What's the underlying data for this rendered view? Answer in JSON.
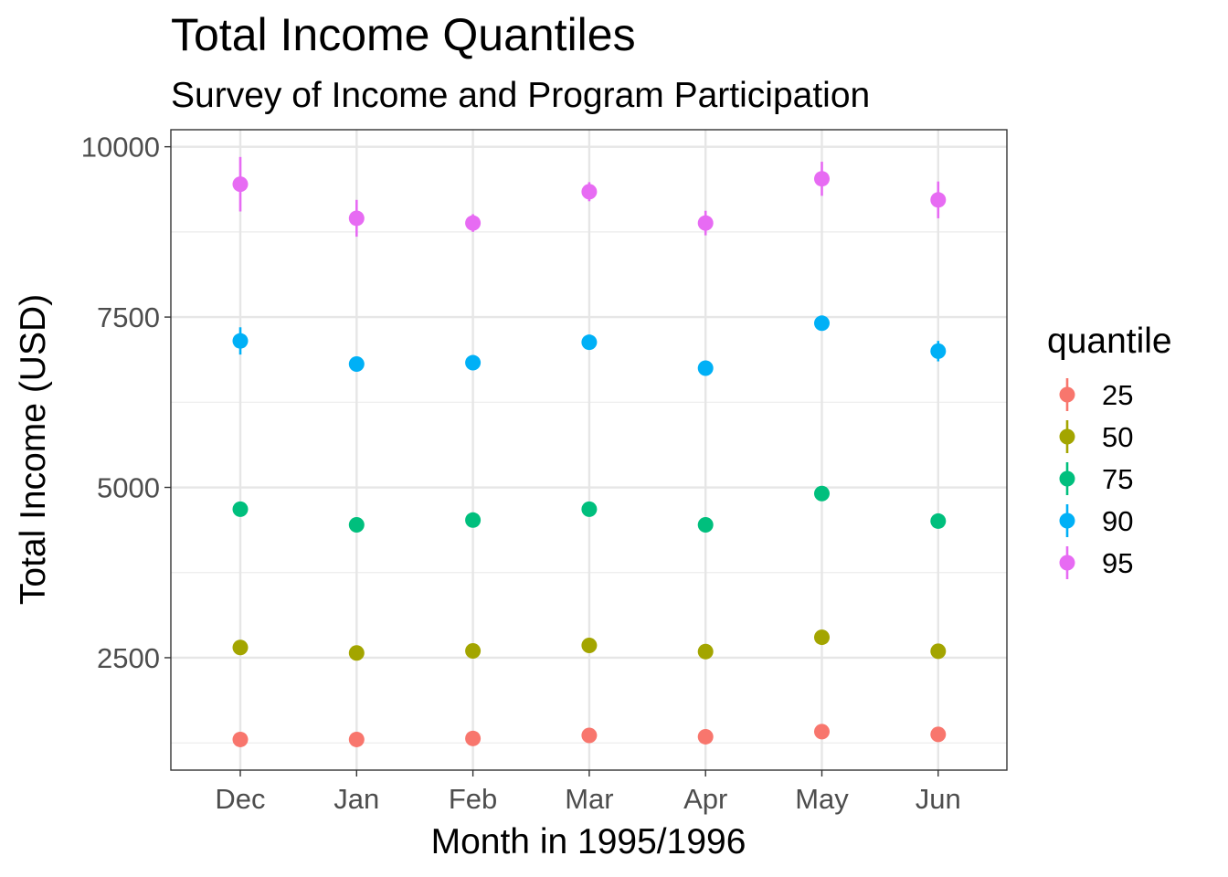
{
  "chart_data": {
    "type": "scatter",
    "title": "Total Income Quantiles",
    "subtitle": "Survey of Income and Program Participation",
    "xlabel": "Month in 1995/1996",
    "ylabel": "Total Income (USD)",
    "categories": [
      "Dec",
      "Jan",
      "Feb",
      "Mar",
      "Apr",
      "May",
      "Jun"
    ],
    "y_ticks": [
      2500,
      5000,
      7500,
      10000
    ],
    "y_tick_labels": [
      "2500",
      "5000",
      "7500",
      "10000"
    ],
    "ylim": [
      850,
      10250
    ],
    "grid": true,
    "legend": {
      "title": "quantile",
      "position": "right"
    },
    "series": [
      {
        "name": "25",
        "color": "#F8766D",
        "values": [
          1300,
          1300,
          1315,
          1360,
          1340,
          1415,
          1375
        ],
        "lower": [
          1270,
          1270,
          1285,
          1325,
          1310,
          1375,
          1340
        ],
        "upper": [
          1330,
          1330,
          1345,
          1395,
          1370,
          1455,
          1410
        ]
      },
      {
        "name": "50",
        "color": "#A3A500",
        "values": [
          2650,
          2570,
          2600,
          2680,
          2590,
          2800,
          2595
        ],
        "lower": [
          2615,
          2535,
          2565,
          2640,
          2555,
          2760,
          2560
        ],
        "upper": [
          2685,
          2605,
          2635,
          2720,
          2625,
          2840,
          2630
        ]
      },
      {
        "name": "75",
        "color": "#00BF7D",
        "values": [
          4680,
          4450,
          4520,
          4680,
          4450,
          4910,
          4505
        ],
        "lower": [
          4630,
          4400,
          4470,
          4630,
          4400,
          4850,
          4455
        ],
        "upper": [
          4730,
          4500,
          4570,
          4730,
          4500,
          4970,
          4555
        ]
      },
      {
        "name": "90",
        "color": "#00B0F6",
        "values": [
          7150,
          6810,
          6830,
          7130,
          6750,
          7410,
          7000
        ],
        "lower": [
          6950,
          6740,
          6760,
          7060,
          6680,
          7310,
          6850
        ],
        "upper": [
          7350,
          6880,
          6900,
          7200,
          6820,
          7510,
          7150
        ]
      },
      {
        "name": "95",
        "color": "#E76BF3",
        "values": [
          9450,
          8950,
          8880,
          9340,
          8880,
          9530,
          9220
        ],
        "lower": [
          9050,
          8680,
          8750,
          9200,
          8700,
          9280,
          8950
        ],
        "upper": [
          9850,
          9220,
          9010,
          9480,
          9060,
          9780,
          9490
        ]
      }
    ]
  }
}
